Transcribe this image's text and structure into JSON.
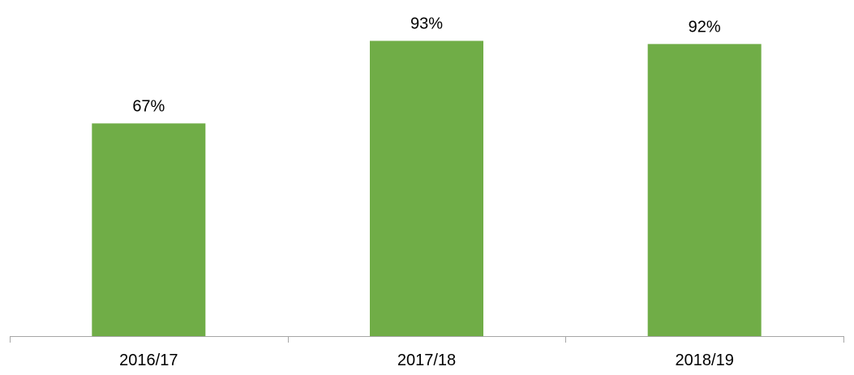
{
  "chart_data": {
    "type": "bar",
    "categories": [
      "2016/17",
      "2017/18",
      "2018/19"
    ],
    "values": [
      67,
      93,
      92
    ],
    "data_labels": [
      "67%",
      "93%",
      "92%"
    ],
    "title": "",
    "xlabel": "",
    "ylabel": "",
    "ylim": [
      0,
      100
    ],
    "unit": "%",
    "grid": false,
    "legend": "none",
    "bar_color": "#70ad47",
    "axis_color": "#a6a6a6"
  }
}
